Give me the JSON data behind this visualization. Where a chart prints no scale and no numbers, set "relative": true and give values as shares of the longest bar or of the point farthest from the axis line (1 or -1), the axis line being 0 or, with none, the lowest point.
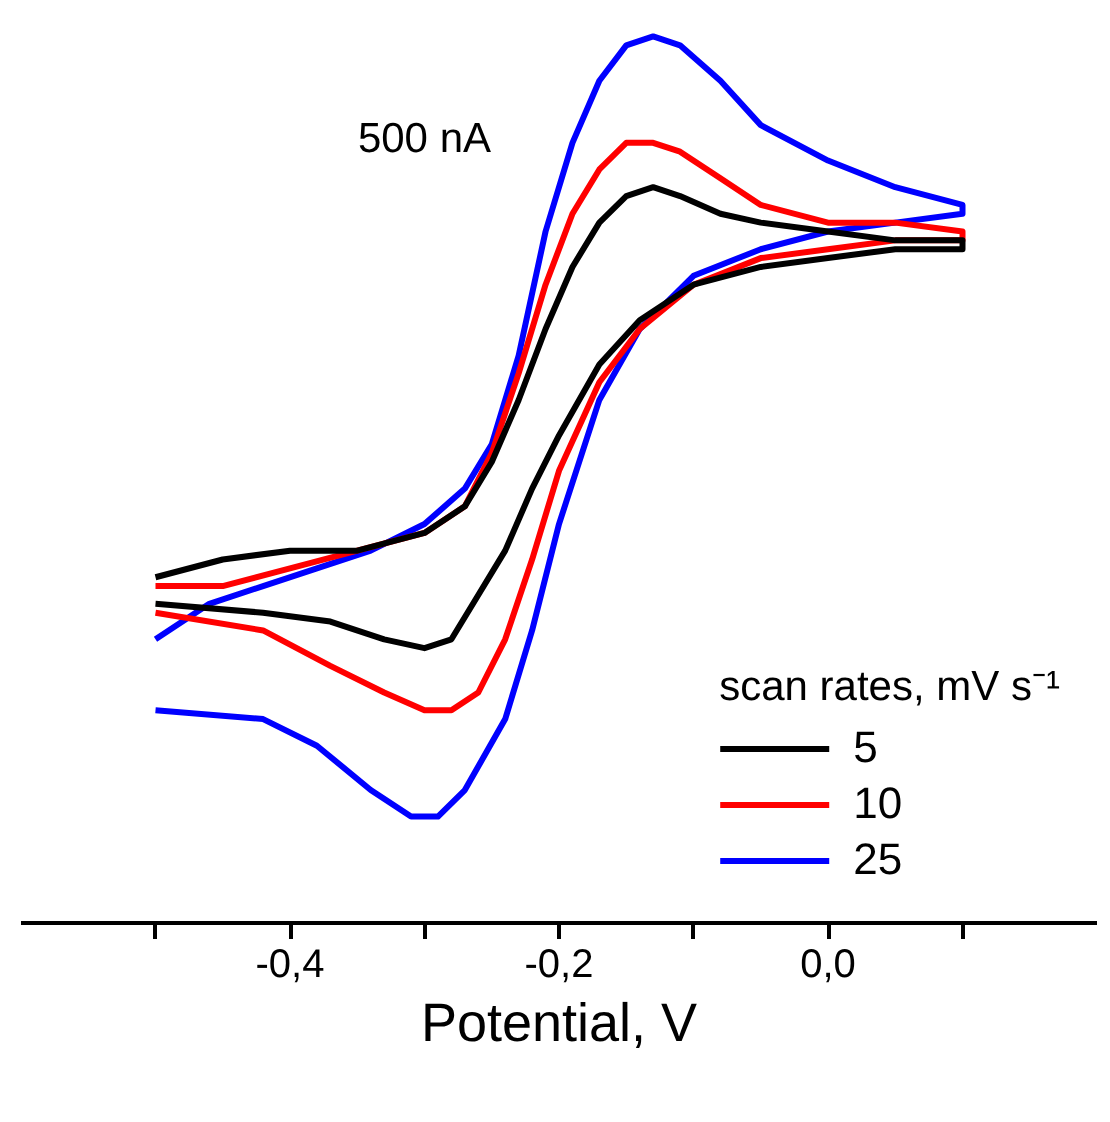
{
  "chart_data": {
    "type": "line",
    "relative": true,
    "xlabel": "Potential, V",
    "legend_title": "scan rates, mV s⁻¹",
    "legend": "bottom right",
    "grid": false,
    "tick_labels": "x",
    "line_style": "solid",
    "marker": "none",
    "xlim": [
      -0.6,
      0.2
    ],
    "xticks": [
      {
        "value": -0.5,
        "label": null
      },
      {
        "value": -0.4,
        "label": "-0,4"
      },
      {
        "value": -0.3,
        "label": null
      },
      {
        "value": -0.2,
        "label": "-0,2"
      },
      {
        "value": -0.1,
        "label": null
      },
      {
        "value": 0.0,
        "label": "0,0"
      },
      {
        "value": 0.1,
        "label": null
      }
    ],
    "annotations": [
      "500 nA"
    ],
    "series": [
      {
        "name": "5",
        "color": "#000000",
        "x": [
          -0.5,
          -0.45,
          -0.4,
          -0.35,
          -0.3,
          -0.27,
          -0.25,
          -0.23,
          -0.21,
          -0.19,
          -0.17,
          -0.15,
          -0.13,
          -0.11,
          -0.08,
          -0.05,
          0.0,
          0.05,
          0.1,
          0.1,
          0.05,
          0.0,
          -0.05,
          -0.1,
          -0.14,
          -0.17,
          -0.2,
          -0.22,
          -0.24,
          -0.26,
          -0.28,
          -0.3,
          -0.33,
          -0.37,
          -0.42,
          -0.5
        ],
        "values": [
          0.39,
          0.41,
          0.42,
          0.42,
          0.44,
          0.47,
          0.52,
          0.59,
          0.67,
          0.74,
          0.79,
          0.82,
          0.83,
          0.82,
          0.8,
          0.79,
          0.78,
          0.77,
          0.77,
          0.76,
          0.76,
          0.75,
          0.74,
          0.72,
          0.68,
          0.63,
          0.55,
          0.49,
          0.42,
          0.37,
          0.32,
          0.31,
          0.32,
          0.34,
          0.35,
          0.36
        ]
      },
      {
        "name": "10",
        "color": "#ff0000",
        "x": [
          -0.5,
          -0.45,
          -0.4,
          -0.35,
          -0.3,
          -0.27,
          -0.25,
          -0.23,
          -0.21,
          -0.19,
          -0.17,
          -0.15,
          -0.13,
          -0.11,
          -0.08,
          -0.05,
          0.0,
          0.05,
          0.1,
          0.1,
          0.05,
          0.0,
          -0.05,
          -0.1,
          -0.14,
          -0.17,
          -0.2,
          -0.22,
          -0.24,
          -0.26,
          -0.28,
          -0.3,
          -0.33,
          -0.37,
          -0.42,
          -0.5
        ],
        "values": [
          0.38,
          0.38,
          0.4,
          0.42,
          0.44,
          0.47,
          0.53,
          0.62,
          0.72,
          0.8,
          0.85,
          0.88,
          0.88,
          0.87,
          0.84,
          0.81,
          0.79,
          0.79,
          0.78,
          0.77,
          0.77,
          0.76,
          0.75,
          0.72,
          0.67,
          0.61,
          0.51,
          0.41,
          0.32,
          0.26,
          0.24,
          0.24,
          0.26,
          0.29,
          0.33,
          0.35
        ]
      },
      {
        "name": "25",
        "color": "#0000ff",
        "x": [
          -0.5,
          -0.46,
          -0.42,
          -0.38,
          -0.34,
          -0.3,
          -0.27,
          -0.25,
          -0.23,
          -0.21,
          -0.19,
          -0.17,
          -0.15,
          -0.13,
          -0.11,
          -0.08,
          -0.05,
          0.0,
          0.05,
          0.1,
          0.1,
          0.05,
          0.0,
          -0.05,
          -0.1,
          -0.14,
          -0.17,
          -0.2,
          -0.22,
          -0.24,
          -0.27,
          -0.29,
          -0.31,
          -0.34,
          -0.38,
          -0.42,
          -0.5
        ],
        "values": [
          0.32,
          0.36,
          0.38,
          0.4,
          0.42,
          0.45,
          0.49,
          0.54,
          0.64,
          0.78,
          0.88,
          0.95,
          0.99,
          1.0,
          0.99,
          0.95,
          0.9,
          0.86,
          0.83,
          0.81,
          0.8,
          0.79,
          0.78,
          0.76,
          0.73,
          0.67,
          0.59,
          0.45,
          0.33,
          0.23,
          0.15,
          0.12,
          0.12,
          0.15,
          0.2,
          0.23,
          0.24
        ]
      }
    ]
  }
}
